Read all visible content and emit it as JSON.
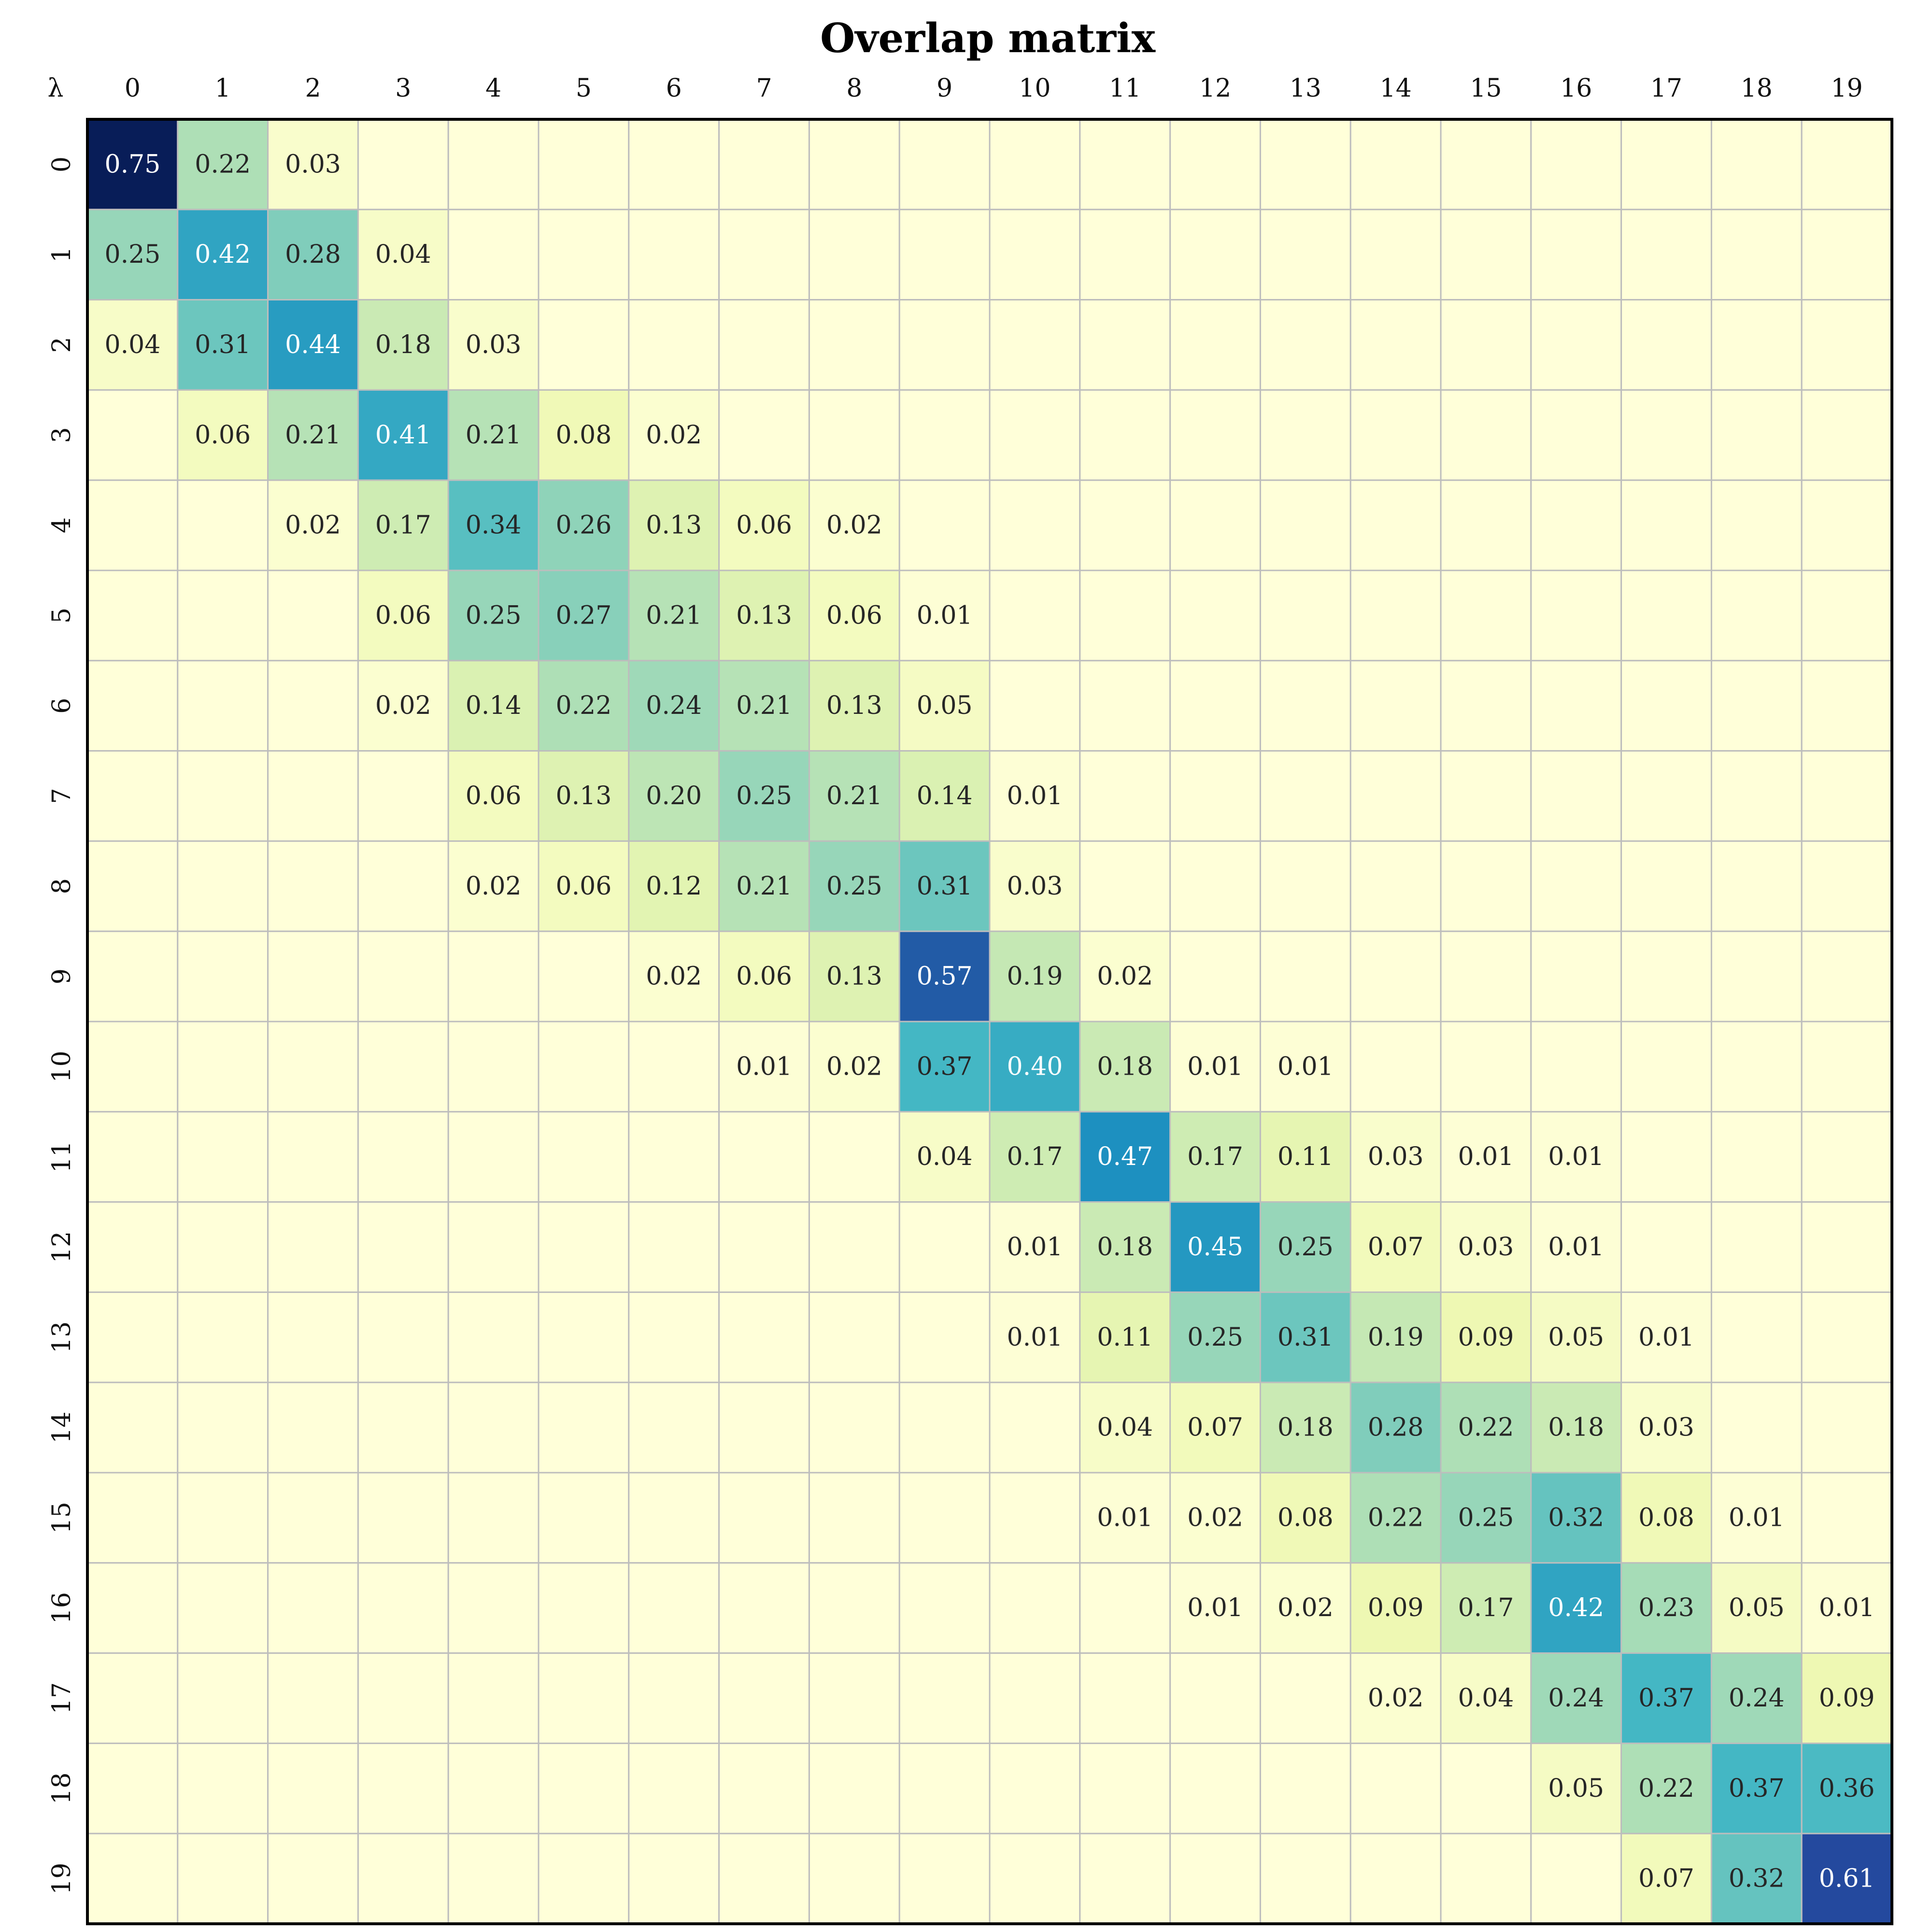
{
  "chart_data": {
    "type": "heatmap",
    "title": "Overlap matrix",
    "row_axis_label": "λ",
    "x_categories": [
      "0",
      "1",
      "2",
      "3",
      "4",
      "5",
      "6",
      "7",
      "8",
      "9",
      "10",
      "11",
      "12",
      "13",
      "14",
      "15",
      "16",
      "17",
      "18",
      "19"
    ],
    "y_categories": [
      "0",
      "1",
      "2",
      "3",
      "4",
      "5",
      "6",
      "7",
      "8",
      "9",
      "10",
      "11",
      "12",
      "13",
      "14",
      "15",
      "16",
      "17",
      "18",
      "19"
    ],
    "value_format": "2 decimals; labels shown only where value rounds to at least 0.01",
    "colormap": "YlGnBu",
    "vmin": 0,
    "vmax": 0.75,
    "grid": true,
    "values": [
      [
        0.75,
        0.22,
        0.03,
        0,
        0,
        0,
        0,
        0,
        0,
        0,
        0,
        0,
        0,
        0,
        0,
        0,
        0,
        0,
        0,
        0
      ],
      [
        0.25,
        0.42,
        0.28,
        0.04,
        0,
        0,
        0,
        0,
        0,
        0,
        0,
        0,
        0,
        0,
        0,
        0,
        0,
        0,
        0,
        0
      ],
      [
        0.04,
        0.31,
        0.44,
        0.18,
        0.03,
        0,
        0,
        0,
        0,
        0,
        0,
        0,
        0,
        0,
        0,
        0,
        0,
        0,
        0,
        0
      ],
      [
        0,
        0.06,
        0.21,
        0.41,
        0.21,
        0.08,
        0.02,
        0,
        0,
        0,
        0,
        0,
        0,
        0,
        0,
        0,
        0,
        0,
        0,
        0
      ],
      [
        0,
        0,
        0.02,
        0.17,
        0.34,
        0.26,
        0.13,
        0.06,
        0.02,
        0,
        0,
        0,
        0,
        0,
        0,
        0,
        0,
        0,
        0,
        0
      ],
      [
        0,
        0,
        0,
        0.06,
        0.25,
        0.27,
        0.21,
        0.13,
        0.06,
        0.01,
        0,
        0,
        0,
        0,
        0,
        0,
        0,
        0,
        0,
        0
      ],
      [
        0,
        0,
        0,
        0.02,
        0.14,
        0.22,
        0.24,
        0.21,
        0.13,
        0.05,
        0,
        0,
        0,
        0,
        0,
        0,
        0,
        0,
        0,
        0
      ],
      [
        0,
        0,
        0,
        0,
        0.06,
        0.13,
        0.2,
        0.25,
        0.21,
        0.14,
        0.01,
        0,
        0,
        0,
        0,
        0,
        0,
        0,
        0,
        0
      ],
      [
        0,
        0,
        0,
        0,
        0.02,
        0.06,
        0.12,
        0.21,
        0.25,
        0.31,
        0.03,
        0,
        0,
        0,
        0,
        0,
        0,
        0,
        0,
        0
      ],
      [
        0,
        0,
        0,
        0,
        0,
        0,
        0.02,
        0.06,
        0.13,
        0.57,
        0.19,
        0.02,
        0,
        0,
        0,
        0,
        0,
        0,
        0,
        0
      ],
      [
        0,
        0,
        0,
        0,
        0,
        0,
        0,
        0.01,
        0.02,
        0.37,
        0.4,
        0.18,
        0.01,
        0.01,
        0,
        0,
        0,
        0,
        0,
        0
      ],
      [
        0,
        0,
        0,
        0,
        0,
        0,
        0,
        0,
        0,
        0.04,
        0.17,
        0.47,
        0.17,
        0.11,
        0.03,
        0.01,
        0.01,
        0,
        0,
        0
      ],
      [
        0,
        0,
        0,
        0,
        0,
        0,
        0,
        0,
        0,
        0,
        0.01,
        0.18,
        0.45,
        0.25,
        0.07,
        0.03,
        0.01,
        0,
        0,
        0
      ],
      [
        0,
        0,
        0,
        0,
        0,
        0,
        0,
        0,
        0,
        0,
        0.01,
        0.11,
        0.25,
        0.31,
        0.19,
        0.09,
        0.05,
        0.01,
        0,
        0
      ],
      [
        0,
        0,
        0,
        0,
        0,
        0,
        0,
        0,
        0,
        0,
        0,
        0.04,
        0.07,
        0.18,
        0.28,
        0.22,
        0.18,
        0.03,
        0,
        0
      ],
      [
        0,
        0,
        0,
        0,
        0,
        0,
        0,
        0,
        0,
        0,
        0,
        0.01,
        0.02,
        0.08,
        0.22,
        0.25,
        0.32,
        0.08,
        0.01,
        0
      ],
      [
        0,
        0,
        0,
        0,
        0,
        0,
        0,
        0,
        0,
        0,
        0,
        0,
        0.01,
        0.02,
        0.09,
        0.17,
        0.42,
        0.23,
        0.05,
        0.01
      ],
      [
        0,
        0,
        0,
        0,
        0,
        0,
        0,
        0,
        0,
        0,
        0,
        0,
        0,
        0,
        0.02,
        0.04,
        0.24,
        0.37,
        0.24,
        0.09
      ],
      [
        0,
        0,
        0,
        0,
        0,
        0,
        0,
        0,
        0,
        0,
        0,
        0,
        0,
        0,
        0,
        0,
        0.05,
        0.22,
        0.37,
        0.36
      ],
      [
        0,
        0,
        0,
        0,
        0,
        0,
        0,
        0,
        0,
        0,
        0,
        0,
        0,
        0,
        0,
        0,
        0,
        0.07,
        0.32,
        0.61
      ]
    ]
  },
  "colors": {
    "border": "#000000",
    "grid_line": "#bdbdbd",
    "text_dark": "#262626",
    "text_light": "#ffffff"
  }
}
